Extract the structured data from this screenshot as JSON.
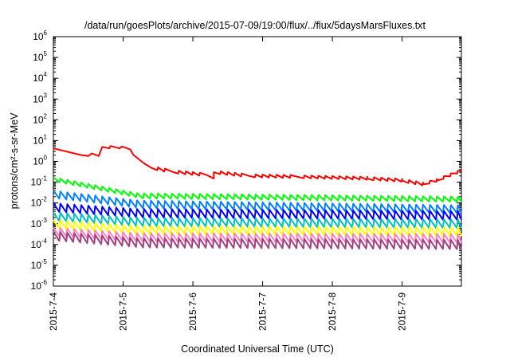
{
  "chart_data": {
    "type": "line",
    "title": "/data/run/goesPlots/archive/2015-07-09/19:00/flux/../flux/5daysMarsFluxes.txt",
    "xlabel": "Coordinated Universal Time (UTC)",
    "ylabel": "protons/cm²-s-sr-MeV",
    "yscale": "log",
    "ylim": [
      1e-06,
      1000000.0
    ],
    "xlim_days": [
      0,
      5.85
    ],
    "y_ticks": [
      {
        "base": "10",
        "exp": "6"
      },
      {
        "base": "10",
        "exp": "5"
      },
      {
        "base": "10",
        "exp": "4"
      },
      {
        "base": "10",
        "exp": "3"
      },
      {
        "base": "10",
        "exp": "2"
      },
      {
        "base": "10",
        "exp": "1"
      },
      {
        "base": "10",
        "exp": "0"
      },
      {
        "base": "10",
        "exp": "-1"
      },
      {
        "base": "10",
        "exp": "-2"
      },
      {
        "base": "10",
        "exp": "-3"
      },
      {
        "base": "10",
        "exp": "-4"
      },
      {
        "base": "10",
        "exp": "-5"
      },
      {
        "base": "10",
        "exp": "-6"
      }
    ],
    "x_ticks": [
      "2015-7-4",
      "2015-7-5",
      "2015-7-6",
      "2015-7-7",
      "2015-7-8",
      "2015-7-9"
    ],
    "grid": false,
    "series": [
      {
        "color": "#ff0000",
        "shape": "decay",
        "points": [
          [
            0,
            4.2
          ],
          [
            0.4,
            2.0
          ],
          [
            0.5,
            1.8
          ],
          [
            0.55,
            2.4
          ],
          [
            0.65,
            1.8
          ],
          [
            0.7,
            5.0
          ],
          [
            0.8,
            4.2
          ],
          [
            0.82,
            5.5
          ],
          [
            0.95,
            4.2
          ],
          [
            0.98,
            5.2
          ],
          [
            1.1,
            3.8
          ],
          [
            1.15,
            2.0
          ],
          [
            1.3,
            0.8
          ],
          [
            1.4,
            0.5
          ],
          [
            1.7,
            0.32
          ],
          [
            2.2,
            0.22
          ],
          [
            2.3,
            0.15
          ],
          [
            2.3,
            0.3
          ],
          [
            2.8,
            0.2
          ],
          [
            3.5,
            0.18
          ],
          [
            4.5,
            0.15
          ],
          [
            5.0,
            0.12
          ],
          [
            5.3,
            0.08
          ],
          [
            5.5,
            0.12
          ],
          [
            5.85,
            0.35
          ]
        ],
        "sawtooth": {
          "period": 0.1,
          "amp": 1.5,
          "from": 1.3
        }
      },
      {
        "color": "#00ff00",
        "shape": "sawtooth",
        "start": 0.13,
        "level": 0.022,
        "period": 0.1,
        "amp": 1.8,
        "end": 0.015
      },
      {
        "color": "#0080ff",
        "shape": "sawtooth",
        "start": 0.025,
        "level": 0.0085,
        "period": 0.1,
        "amp": 2.4,
        "end": 0.005
      },
      {
        "color": "#0000ff",
        "shape": "sawtooth",
        "start": 0.006,
        "level": 0.0032,
        "period": 0.1,
        "amp": 2.6,
        "end": 0.0025
      },
      {
        "color": "#00c0c0",
        "shape": "sawtooth",
        "start": 0.0022,
        "level": 0.0012,
        "period": 0.1,
        "amp": 2.6,
        "end": 0.001
      },
      {
        "color": "#ffff00",
        "shape": "sawtooth",
        "start": 0.00095,
        "level": 0.0005,
        "period": 0.1,
        "amp": 2.6,
        "end": 0.00042
      },
      {
        "color": "#ff80c0",
        "shape": "sawtooth",
        "start": 0.0004,
        "level": 0.00022,
        "period": 0.1,
        "amp": 2.6,
        "end": 0.0002
      },
      {
        "color": "#a04080",
        "shape": "sawtooth",
        "start": 0.00025,
        "level": 0.00012,
        "period": 0.1,
        "amp": 2.8,
        "end": 0.0001
      }
    ]
  }
}
